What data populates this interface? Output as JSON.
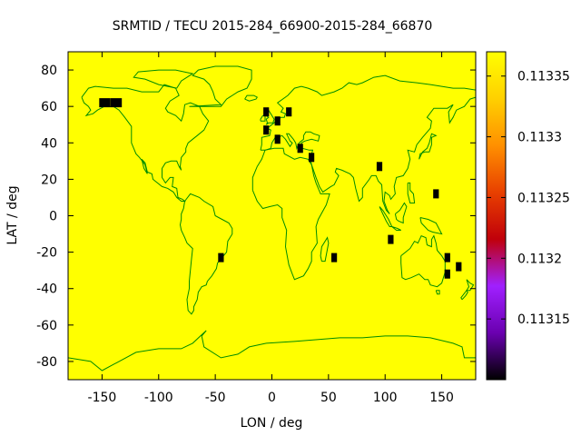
{
  "chart_data": {
    "type": "heatmap",
    "title": "SRMTID / TECU 2015-284_66900-2015-284_66870",
    "xlabel": "LON / deg",
    "ylabel": "LAT / deg",
    "xlim": [
      -180,
      180
    ],
    "ylim": [
      -90,
      90
    ],
    "xticks": [
      -150,
      -100,
      -50,
      0,
      50,
      100,
      150
    ],
    "yticks": [
      80,
      60,
      40,
      20,
      0,
      -20,
      -40,
      -60,
      -80
    ],
    "background_color": "#ffff00",
    "coastline_color": "#008b00",
    "colorbar": {
      "range": [
        0.1131,
        0.11337
      ],
      "ticks": [
        "0.11335",
        "0.1133",
        "0.11325",
        "0.1132",
        "0.11315"
      ],
      "tick_values": [
        0.11335,
        0.1133,
        0.11325,
        0.1132,
        0.11315
      ],
      "colors": [
        "#000000",
        "#6a00b0",
        "#a020ff",
        "#c0000a",
        "#e84000",
        "#ff9000",
        "#ffd000",
        "#ffff00"
      ]
    },
    "stations": [
      {
        "lon": -150,
        "lat": 62,
        "value": 0.1131
      },
      {
        "lon": -145,
        "lat": 62,
        "value": 0.1131
      },
      {
        "lon": -140,
        "lat": 62,
        "value": 0.1131
      },
      {
        "lon": -135,
        "lat": 62,
        "value": 0.1131
      },
      {
        "lon": -5,
        "lat": 57,
        "value": 0.1131
      },
      {
        "lon": 5,
        "lat": 52,
        "value": 0.1131
      },
      {
        "lon": 15,
        "lat": 57,
        "value": 0.1131
      },
      {
        "lon": -5,
        "lat": 47,
        "value": 0.1131
      },
      {
        "lon": 5,
        "lat": 42,
        "value": 0.1131
      },
      {
        "lon": 25,
        "lat": 37,
        "value": 0.1131
      },
      {
        "lon": 35,
        "lat": 32,
        "value": 0.1131
      },
      {
        "lon": 95,
        "lat": 27,
        "value": 0.1131
      },
      {
        "lon": 145,
        "lat": 12,
        "value": 0.1131
      },
      {
        "lon": 105,
        "lat": -13,
        "value": 0.1131
      },
      {
        "lon": -45,
        "lat": -23,
        "value": 0.1131
      },
      {
        "lon": 55,
        "lat": -23,
        "value": 0.1131
      },
      {
        "lon": 155,
        "lat": -23,
        "value": 0.1131
      },
      {
        "lon": 165,
        "lat": -28,
        "value": 0.1131
      },
      {
        "lon": 155,
        "lat": -32,
        "value": 0.1131
      }
    ]
  }
}
